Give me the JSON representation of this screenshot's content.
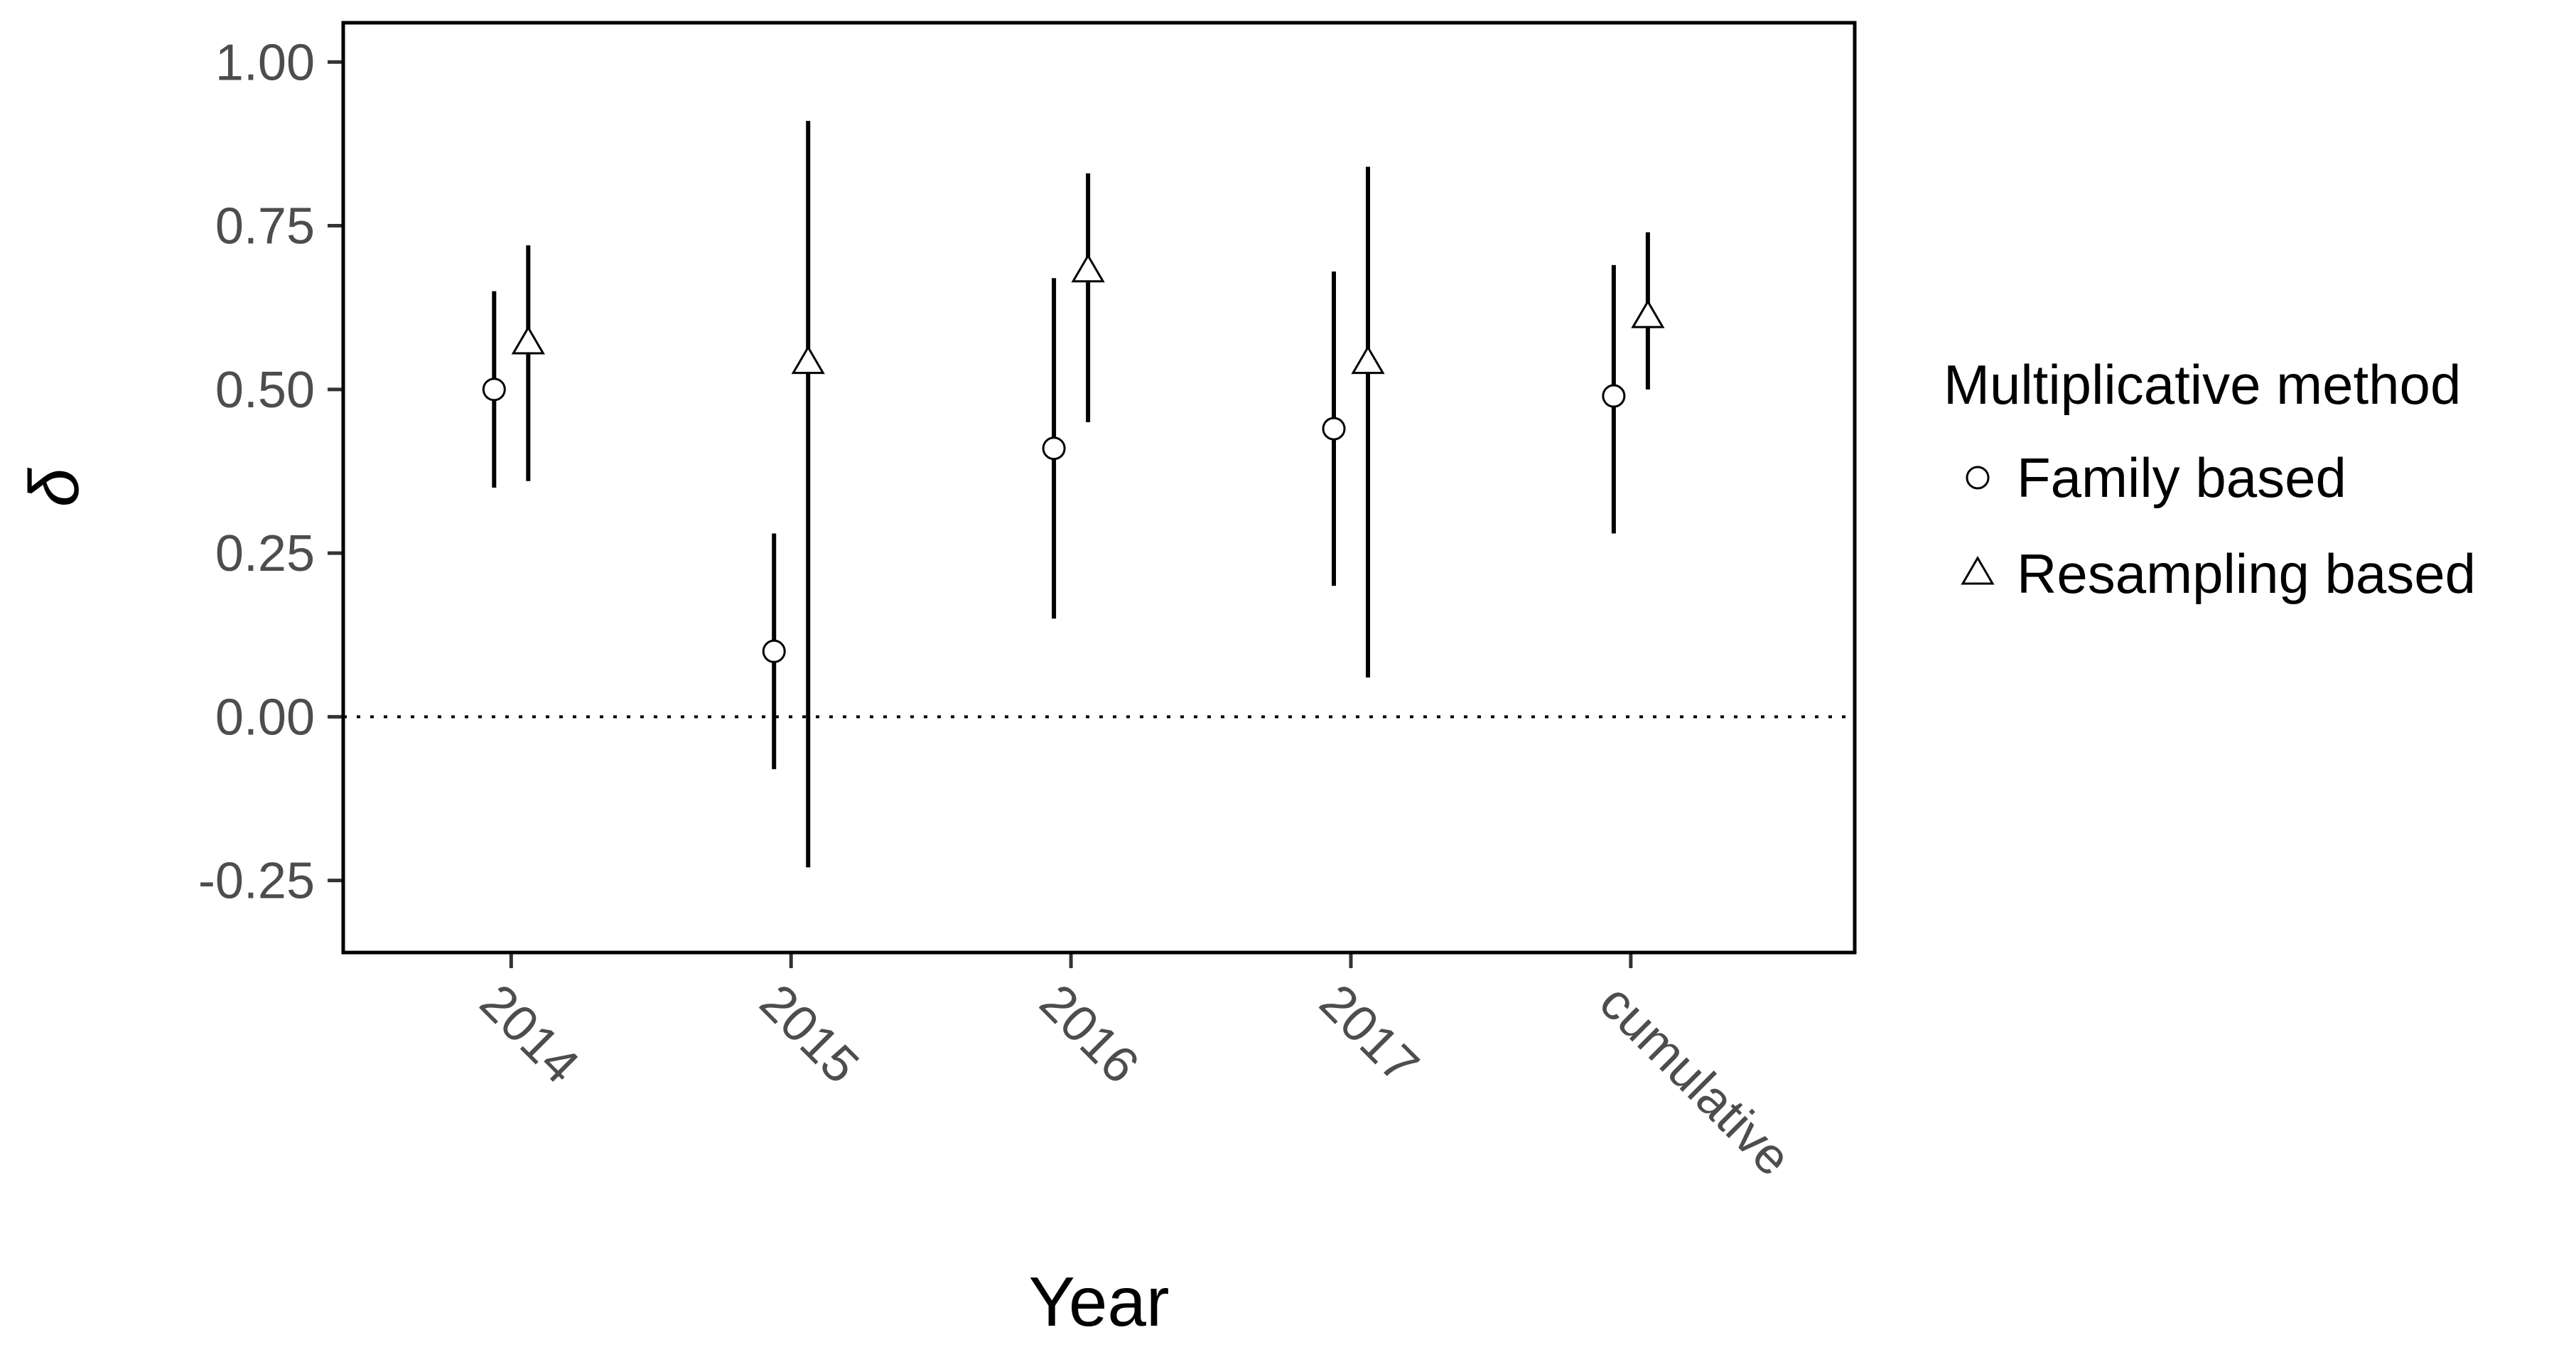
{
  "chart_data": {
    "type": "scatter",
    "title": "",
    "xlabel": "Year",
    "ylabel": "δ",
    "categories": [
      "2014",
      "2015",
      "2016",
      "2017",
      "cumulative"
    ],
    "ylim": [
      -0.36,
      1.06
    ],
    "yticks": [
      -0.25,
      0.0,
      0.25,
      0.5,
      0.75,
      1.0
    ],
    "ytick_labels": [
      "-0.25",
      "0.00",
      "0.25",
      "0.50",
      "0.75",
      "1.00"
    ],
    "reference_line": {
      "y": 0.0,
      "style": "dotted"
    },
    "grid": false,
    "legend": {
      "title": "Multiplicative method",
      "position": "right"
    },
    "series": [
      {
        "name": "Family based",
        "marker": "circle",
        "values": [
          0.5,
          0.1,
          0.41,
          0.44,
          0.49
        ],
        "lower": [
          0.35,
          -0.08,
          0.15,
          0.2,
          0.28
        ],
        "upper": [
          0.65,
          0.28,
          0.67,
          0.68,
          0.69
        ]
      },
      {
        "name": "Resampling based",
        "marker": "triangle",
        "values": [
          0.57,
          0.54,
          0.68,
          0.54,
          0.61
        ],
        "lower": [
          0.36,
          -0.23,
          0.45,
          0.06,
          0.5
        ],
        "upper": [
          0.72,
          0.91,
          0.83,
          0.84,
          0.74
        ]
      }
    ]
  }
}
